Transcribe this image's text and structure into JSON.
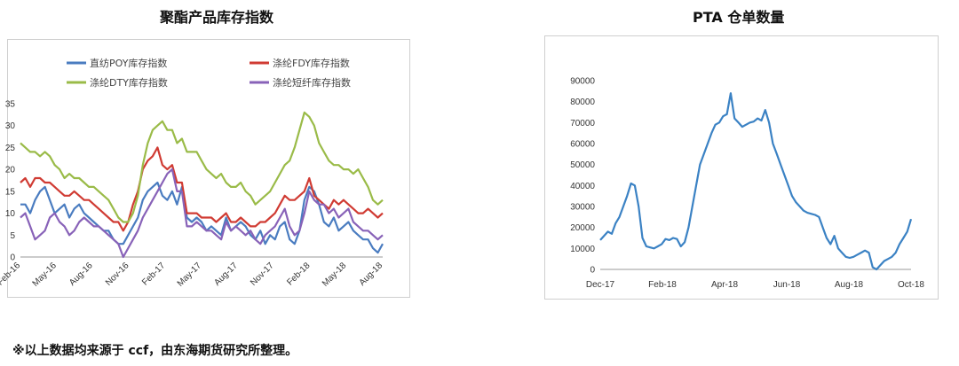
{
  "titles": {
    "left": "聚酯产品库存指数",
    "right": "PTA 仓单数量"
  },
  "footnote": "※以上数据均来源于 ccf，由东海期货研究所整理。",
  "chart_data": [
    {
      "type": "line",
      "title": "聚酯产品库存指数",
      "ylim": [
        0,
        35
      ],
      "y_ticks": [
        "0",
        "5",
        "10",
        "15",
        "20",
        "25",
        "30",
        "35"
      ],
      "x_tick_labels": [
        "Feb-16",
        "May-16",
        "Aug-16",
        "Nov-16",
        "Feb-17",
        "May-17",
        "Aug-17",
        "Nov-17",
        "Feb-18",
        "May-18",
        "Aug-18"
      ],
      "x_ticks_rotated": true,
      "legend_position": "top",
      "grid": false,
      "series": [
        {
          "name": "直纺POY库存指数",
          "color": "#4a7cc0",
          "values": [
            12,
            12,
            10,
            13,
            15,
            16,
            13,
            10,
            11,
            12,
            9,
            11,
            12,
            10,
            9,
            8,
            7,
            6,
            6,
            4,
            3,
            3,
            5,
            7,
            9,
            13,
            15,
            16,
            17,
            14,
            13,
            15,
            12,
            16,
            9,
            8,
            9,
            8,
            6,
            7,
            6,
            5,
            9,
            6,
            7,
            8,
            7,
            5,
            4,
            6,
            3,
            5,
            4,
            7,
            8,
            4,
            3,
            6,
            13,
            16,
            15,
            12,
            8,
            7,
            9,
            6,
            7,
            8,
            6,
            5,
            4,
            4,
            2,
            1,
            3
          ]
        },
        {
          "name": "涤纶FDY库存指数",
          "color": "#d03b33",
          "values": [
            17,
            18,
            16,
            18,
            18,
            17,
            17,
            16,
            15,
            14,
            14,
            15,
            14,
            13,
            13,
            12,
            11,
            10,
            9,
            8,
            8,
            6,
            8,
            12,
            15,
            20,
            22,
            23,
            25,
            21,
            20,
            21,
            17,
            17,
            10,
            10,
            10,
            9,
            9,
            9,
            8,
            9,
            10,
            8,
            8,
            9,
            8,
            7,
            7,
            8,
            8,
            9,
            10,
            12,
            14,
            13,
            13,
            14,
            15,
            18,
            14,
            13,
            12,
            11,
            13,
            12,
            13,
            12,
            11,
            10,
            10,
            11,
            10,
            9,
            10
          ]
        },
        {
          "name": "涤纶DTY库存指数",
          "color": "#9abb48",
          "values": [
            26,
            25,
            24,
            24,
            23,
            24,
            23,
            21,
            20,
            18,
            19,
            18,
            18,
            17,
            16,
            16,
            15,
            14,
            13,
            11,
            9,
            8,
            8,
            10,
            14,
            21,
            26,
            29,
            30,
            31,
            29,
            29,
            26,
            27,
            24,
            24,
            24,
            22,
            20,
            19,
            18,
            19,
            17,
            16,
            16,
            17,
            15,
            14,
            12,
            13,
            14,
            15,
            17,
            19,
            21,
            22,
            25,
            29,
            33,
            32,
            30,
            26,
            24,
            22,
            21,
            21,
            20,
            20,
            19,
            20,
            18,
            16,
            13,
            12,
            13
          ]
        },
        {
          "name": "涤纶短纤库存指数",
          "color": "#8862b8",
          "values": [
            9,
            10,
            7,
            4,
            5,
            6,
            9,
            10,
            8,
            7,
            5,
            6,
            8,
            9,
            8,
            7,
            7,
            6,
            5,
            4,
            3,
            0,
            2,
            4,
            6,
            9,
            11,
            13,
            15,
            17,
            19,
            20,
            15,
            15,
            7,
            7,
            8,
            7,
            6,
            6,
            5,
            4,
            8,
            6,
            7,
            6,
            5,
            6,
            4,
            3,
            5,
            6,
            7,
            9,
            11,
            7,
            5,
            6,
            10,
            15,
            13,
            12,
            12,
            10,
            11,
            9,
            10,
            11,
            8,
            7,
            6,
            6,
            5,
            4,
            5
          ]
        }
      ]
    },
    {
      "type": "line",
      "title": "PTA 仓单数量",
      "ylim": [
        0,
        90000
      ],
      "y_ticks": [
        "0",
        "10000",
        "20000",
        "30000",
        "40000",
        "50000",
        "60000",
        "70000",
        "80000",
        "90000"
      ],
      "x_tick_labels": [
        "Dec-17",
        "Feb-18",
        "Apr-18",
        "Jun-18",
        "Aug-18",
        "Oct-18"
      ],
      "grid": false,
      "series": [
        {
          "name": "",
          "color": "#3b82c4",
          "values": [
            14000,
            16000,
            18000,
            17000,
            22000,
            25000,
            30000,
            35000,
            41000,
            40000,
            30000,
            15000,
            11000,
            10500,
            10000,
            11000,
            12000,
            14500,
            14000,
            15000,
            14500,
            11000,
            13000,
            20000,
            30000,
            40000,
            50000,
            55000,
            60000,
            65000,
            69000,
            70000,
            73000,
            74000,
            84000,
            72000,
            70000,
            68000,
            69000,
            70000,
            70500,
            72000,
            71000,
            76000,
            70000,
            60000,
            55000,
            50000,
            45000,
            40000,
            35000,
            32000,
            30000,
            28000,
            27000,
            26500,
            26000,
            25000,
            20000,
            15000,
            12000,
            16000,
            10000,
            8000,
            6000,
            5500,
            6000,
            7000,
            8000,
            9000,
            8000,
            1000,
            0,
            2000,
            4000,
            5000,
            6000,
            8000,
            12000,
            15000,
            18000,
            24000
          ]
        }
      ]
    }
  ]
}
